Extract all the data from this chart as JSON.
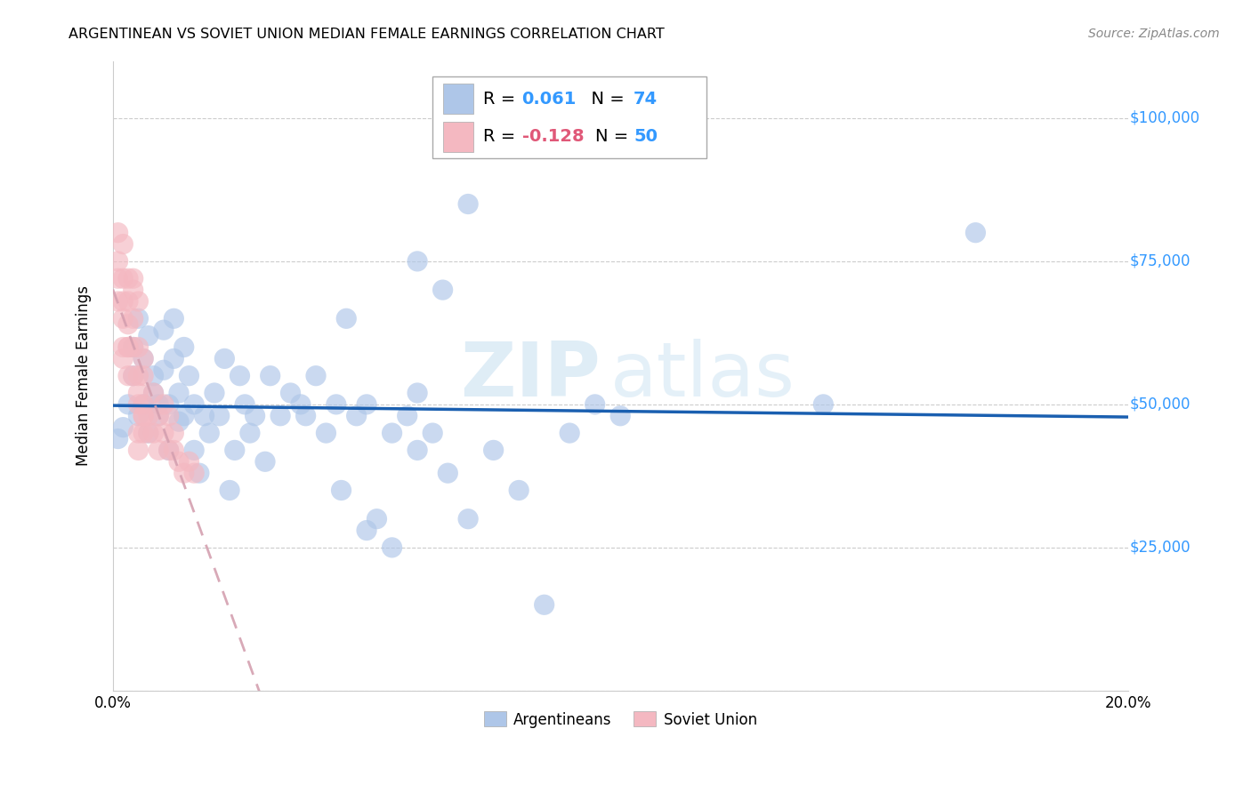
{
  "title": "ARGENTINEAN VS SOVIET UNION MEDIAN FEMALE EARNINGS CORRELATION CHART",
  "source": "Source: ZipAtlas.com",
  "ylabel": "Median Female Earnings",
  "xlim": [
    0.0,
    0.2
  ],
  "ylim": [
    0,
    110000
  ],
  "yticks": [
    0,
    25000,
    50000,
    75000,
    100000
  ],
  "ytick_labels": [
    "",
    "$25,000",
    "$50,000",
    "$75,000",
    "$100,000"
  ],
  "xticks": [
    0.0,
    0.04,
    0.08,
    0.12,
    0.16,
    0.2
  ],
  "xtick_labels": [
    "0.0%",
    "",
    "",
    "",
    "",
    "20.0%"
  ],
  "legend_entries": [
    {
      "label": "Argentineans",
      "color": "#aec6e8",
      "R": "0.061",
      "N": "74"
    },
    {
      "label": "Soviet Union",
      "color": "#f4b8c1",
      "R": "-0.128",
      "N": "50"
    }
  ],
  "argentineans_x": [
    0.001,
    0.002,
    0.003,
    0.004,
    0.004,
    0.005,
    0.005,
    0.006,
    0.006,
    0.007,
    0.007,
    0.008,
    0.008,
    0.009,
    0.009,
    0.01,
    0.01,
    0.011,
    0.011,
    0.012,
    0.012,
    0.013,
    0.013,
    0.014,
    0.014,
    0.015,
    0.016,
    0.016,
    0.017,
    0.018,
    0.019,
    0.02,
    0.021,
    0.022,
    0.023,
    0.024,
    0.025,
    0.026,
    0.027,
    0.028,
    0.03,
    0.031,
    0.033,
    0.035,
    0.037,
    0.038,
    0.04,
    0.042,
    0.044,
    0.046,
    0.048,
    0.05,
    0.052,
    0.055,
    0.058,
    0.06,
    0.063,
    0.066,
    0.07,
    0.075,
    0.08,
    0.085,
    0.09,
    0.095,
    0.1,
    0.06,
    0.065,
    0.07,
    0.14,
    0.17,
    0.045,
    0.05,
    0.055,
    0.06
  ],
  "argentineans_y": [
    44000,
    46000,
    50000,
    55000,
    60000,
    48000,
    65000,
    50000,
    58000,
    62000,
    45000,
    52000,
    55000,
    48000,
    50000,
    56000,
    63000,
    42000,
    50000,
    58000,
    65000,
    47000,
    52000,
    60000,
    48000,
    55000,
    42000,
    50000,
    38000,
    48000,
    45000,
    52000,
    48000,
    58000,
    35000,
    42000,
    55000,
    50000,
    45000,
    48000,
    40000,
    55000,
    48000,
    52000,
    50000,
    48000,
    55000,
    45000,
    50000,
    65000,
    48000,
    50000,
    30000,
    45000,
    48000,
    52000,
    45000,
    38000,
    30000,
    42000,
    35000,
    15000,
    45000,
    50000,
    48000,
    75000,
    70000,
    85000,
    50000,
    80000,
    35000,
    28000,
    25000,
    42000
  ],
  "soviet_x": [
    0.001,
    0.001,
    0.001,
    0.001,
    0.002,
    0.002,
    0.002,
    0.002,
    0.002,
    0.003,
    0.003,
    0.003,
    0.003,
    0.004,
    0.004,
    0.004,
    0.005,
    0.005,
    0.005,
    0.005,
    0.005,
    0.006,
    0.006,
    0.006,
    0.006,
    0.006,
    0.007,
    0.007,
    0.008,
    0.008,
    0.009,
    0.009,
    0.01,
    0.01,
    0.011,
    0.011,
    0.012,
    0.012,
    0.013,
    0.014,
    0.015,
    0.016,
    0.002,
    0.003,
    0.004,
    0.005,
    0.006,
    0.005,
    0.004,
    0.003
  ],
  "soviet_y": [
    80000,
    75000,
    72000,
    68000,
    78000,
    72000,
    68000,
    65000,
    60000,
    68000,
    64000,
    60000,
    55000,
    72000,
    65000,
    60000,
    60000,
    55000,
    50000,
    45000,
    42000,
    58000,
    55000,
    50000,
    48000,
    45000,
    48000,
    45000,
    52000,
    45000,
    48000,
    42000,
    50000,
    45000,
    48000,
    42000,
    45000,
    42000,
    40000,
    38000,
    40000,
    38000,
    58000,
    60000,
    55000,
    52000,
    48000,
    68000,
    70000,
    72000
  ],
  "blue_line_color": "#1a5fb0",
  "pink_line_color": "#d4a0b0",
  "scatter_blue": "#aec6e8",
  "scatter_pink": "#f4b8c1",
  "watermark_zip": "ZIP",
  "watermark_atlas": "atlas",
  "background_color": "#ffffff",
  "grid_color": "#cccccc"
}
